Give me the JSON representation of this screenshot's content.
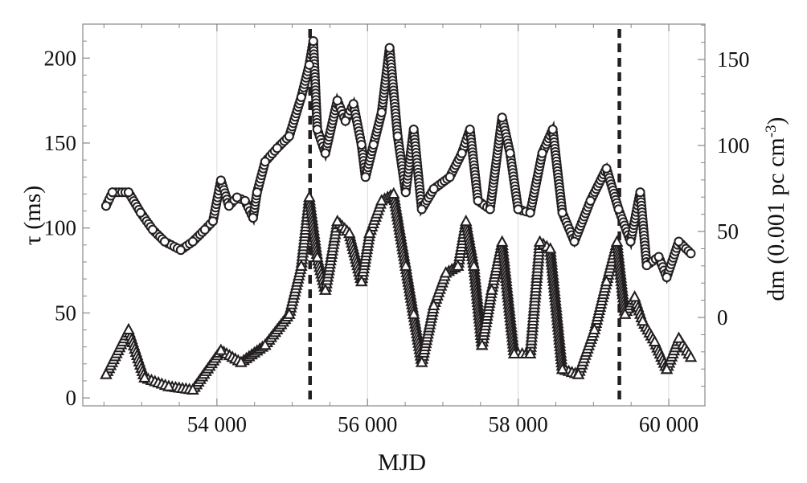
{
  "chart_data": {
    "type": "scatter",
    "xlabel": "MJD",
    "ylabel_left": "τ (ms)",
    "ylabel_right": "dm (0.001 pc cm",
    "ylabel_right_exp": "-3",
    "ylabel_right_close": ")",
    "xlim": [
      52219,
      60480
    ],
    "ylim_left": [
      -4.7,
      220
    ],
    "ylim_right": [
      -51.4,
      170.6
    ],
    "xticks": [
      54000,
      56000,
      58000,
      60000
    ],
    "xtick_labels": [
      "54 000",
      "56 000",
      "58 000",
      "60 000"
    ],
    "yticks_left": [
      0,
      50,
      100,
      150,
      200
    ],
    "yticks_left_labels": [
      "0",
      "50",
      "100",
      "150",
      "200"
    ],
    "yticks_right": [
      0,
      50,
      100,
      150
    ],
    "yticks_right_labels": [
      "0",
      "50",
      "100",
      "150"
    ],
    "grid": "vertical at x ticks",
    "vlines": [
      55237,
      59344
    ],
    "colors": {
      "marker": "#231f20",
      "grid": "#d9d9d9",
      "frame": "#888888",
      "vline": "#231f20"
    },
    "series": [
      {
        "marker": "circle",
        "axis": "left",
        "x": [
          52528,
          52613,
          52827,
          52987,
          53147,
          53307,
          53520,
          53680,
          53840,
          53947,
          54053,
          54160,
          54267,
          54373,
          54480,
          54533,
          54640,
          54800,
          54960,
          55120,
          55227,
          55280,
          55333,
          55440,
          55600,
          55707,
          55813,
          55920,
          55973,
          56080,
          56187,
          56293,
          56400,
          56507,
          56613,
          56720,
          56880,
          57093,
          57253,
          57360,
          57467,
          57627,
          57787,
          57893,
          58000,
          58160,
          58320,
          58459,
          58587,
          58747,
          58960,
          59173,
          59333,
          59493,
          59621,
          59707,
          59867,
          59973,
          60133,
          60293
        ],
        "y": [
          113,
          121,
          121,
          109,
          99,
          92,
          87,
          92,
          99,
          104,
          128,
          113,
          118,
          116,
          106,
          121,
          139,
          147,
          154,
          177,
          196,
          210,
          158,
          144,
          175,
          163,
          173,
          149,
          130,
          149,
          168,
          206,
          154,
          121,
          158,
          111,
          123,
          130,
          144,
          158,
          116,
          111,
          165,
          144,
          111,
          109,
          144,
          158,
          109,
          92,
          116,
          135,
          111,
          92,
          121,
          78,
          83,
          71,
          92,
          85
        ]
      },
      {
        "marker": "triangle",
        "axis": "right",
        "x": [
          52528,
          52827,
          53040,
          53360,
          53680,
          54053,
          54320,
          54640,
          54960,
          55120,
          55227,
          55333,
          55440,
          55600,
          55760,
          55920,
          56027,
          56187,
          56347,
          56507,
          56613,
          56720,
          56880,
          57040,
          57200,
          57307,
          57413,
          57520,
          57648,
          57787,
          57947,
          58160,
          58288,
          58427,
          58587,
          58800,
          59013,
          59173,
          59312,
          59419,
          59547,
          59653,
          59813,
          59973,
          60133,
          60293
        ],
        "y": [
          -33,
          -7,
          -35,
          -40,
          -42,
          -19,
          -26,
          -16,
          2,
          30,
          70,
          35,
          16,
          56,
          49,
          21,
          49,
          68,
          72,
          30,
          2,
          -26,
          7,
          26,
          30,
          56,
          30,
          -16,
          16,
          44,
          -21,
          -21,
          44,
          40,
          -30,
          -33,
          -7,
          21,
          44,
          2,
          12,
          -2,
          -14,
          -30,
          -12,
          -23
        ]
      }
    ]
  }
}
